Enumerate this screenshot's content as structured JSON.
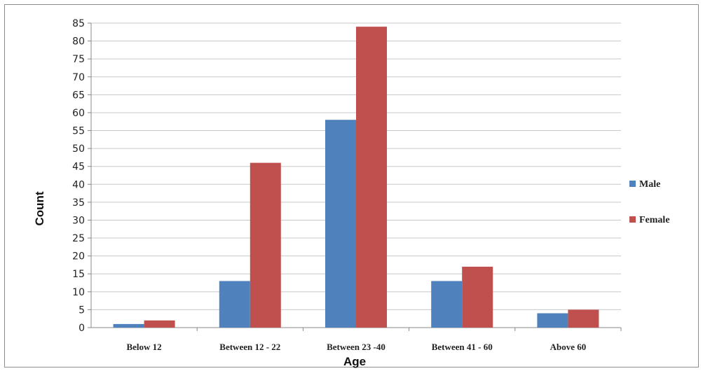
{
  "chart_data": {
    "type": "bar",
    "title": "",
    "xlabel": "Age",
    "ylabel": "Count",
    "ylim": [
      0,
      85
    ],
    "ytick_step": 5,
    "grid": true,
    "legend_position": "right",
    "categories": [
      "Below 12",
      "Between 12 - 22",
      "Between 23 -40",
      "Between 41 - 60",
      "Above 60"
    ],
    "series": [
      {
        "name": "Male",
        "color": "#4f81bd",
        "values": [
          1,
          13,
          58,
          13,
          4
        ]
      },
      {
        "name": "Female",
        "color": "#c0504d",
        "values": [
          2,
          46,
          84,
          17,
          5
        ]
      }
    ]
  }
}
